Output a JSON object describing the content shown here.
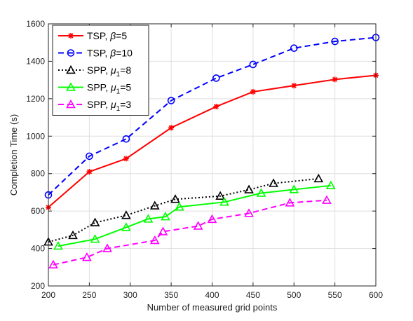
{
  "chart_data": {
    "type": "line",
    "title": "",
    "xlabel": "Number of measured grid points",
    "ylabel": "Completion Time (s)",
    "xlim": [
      200,
      600
    ],
    "ylim": [
      200,
      1600
    ],
    "xticks": [
      200,
      250,
      300,
      350,
      400,
      450,
      500,
      550,
      600
    ],
    "yticks": [
      200,
      400,
      600,
      800,
      1000,
      1200,
      1400,
      1600
    ],
    "grid": true,
    "legend_position": "top-left",
    "series": [
      {
        "name": "TSP, β=5",
        "legend": {
          "prefix": "TSP, ",
          "symbol": "β",
          "subscript": "",
          "suffix": "=5"
        },
        "color": "#ff0000",
        "line_style": "solid",
        "marker": "asterisk",
        "x": [
          200,
          250,
          295,
          350,
          405,
          450,
          500,
          550,
          600
        ],
        "y": [
          620,
          810,
          880,
          1045,
          1158,
          1237,
          1270,
          1303,
          1325
        ]
      },
      {
        "name": "TSP, β=10",
        "legend": {
          "prefix": "TSP, ",
          "symbol": "β",
          "subscript": "",
          "suffix": "=10"
        },
        "color": "#0000ff",
        "line_style": "dashed",
        "marker": "circle",
        "x": [
          200,
          250,
          295,
          350,
          405,
          450,
          500,
          550,
          600
        ],
        "y": [
          686,
          893,
          985,
          1190,
          1310,
          1383,
          1470,
          1506,
          1527
        ]
      },
      {
        "name": "SPP, μ1=8",
        "legend": {
          "prefix": "SPP, ",
          "symbol": "μ",
          "subscript": "1",
          "suffix": "=8"
        },
        "color": "#000000",
        "line_style": "dotted",
        "marker": "triangle",
        "x": [
          200,
          230,
          257,
          295,
          330,
          355,
          410,
          445,
          475,
          530
        ],
        "y": [
          435,
          470,
          538,
          577,
          628,
          663,
          680,
          714,
          748,
          773
        ]
      },
      {
        "name": "SPP, μ1=5",
        "legend": {
          "prefix": "SPP, ",
          "symbol": "μ",
          "subscript": "1",
          "suffix": "=5"
        },
        "color": "#00ff00",
        "line_style": "solid",
        "marker": "triangle",
        "x": [
          212,
          257,
          295,
          322,
          343,
          360,
          415,
          460,
          500,
          545
        ],
        "y": [
          413,
          450,
          513,
          558,
          570,
          622,
          648,
          696,
          715,
          736
        ]
      },
      {
        "name": "SPP, μ1=3",
        "legend": {
          "prefix": "SPP, ",
          "symbol": "μ",
          "subscript": "1",
          "suffix": "=3"
        },
        "color": "#ff00ff",
        "line_style": "dashed",
        "marker": "triangle",
        "x": [
          206,
          247,
          272,
          330,
          340,
          383,
          400,
          445,
          495,
          540
        ],
        "y": [
          313,
          353,
          400,
          443,
          490,
          520,
          556,
          588,
          644,
          658
        ]
      }
    ]
  }
}
